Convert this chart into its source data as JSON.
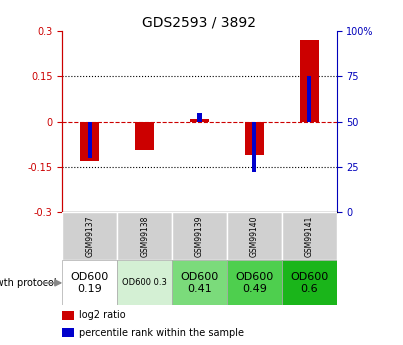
{
  "title": "GDS2593 / 3892",
  "samples": [
    "GSM99137",
    "GSM99138",
    "GSM99139",
    "GSM99140",
    "GSM99141"
  ],
  "log2_ratio": [
    -0.13,
    -0.095,
    0.008,
    -0.11,
    0.27
  ],
  "percentile_rank": [
    30,
    50,
    55,
    22,
    75
  ],
  "growth_protocol_labels": [
    "OD600\n0.19",
    "OD600 0.3",
    "OD600\n0.41",
    "OD600\n0.49",
    "OD600\n0.6"
  ],
  "growth_protocol_colors": [
    "#ffffff",
    "#d4f0d4",
    "#7bdb7b",
    "#4ecf4e",
    "#1ab51a"
  ],
  "growth_protocol_text_sizes": [
    8,
    6,
    8,
    8,
    8
  ],
  "bar_color_red": "#cc0000",
  "bar_color_blue": "#0000cc",
  "left_axis_color": "#cc0000",
  "right_axis_color": "#0000bb",
  "ylim": [
    -0.3,
    0.3
  ],
  "yticks_left": [
    -0.3,
    -0.15,
    0.0,
    0.15,
    0.3
  ],
  "ytick_labels_left": [
    "-0.3",
    "-0.15",
    "0",
    "0.15",
    "0.3"
  ],
  "ytick_labels_right": [
    "0",
    "25",
    "50",
    "75",
    "100%"
  ],
  "ytick_positions_right": [
    0,
    25,
    50,
    75,
    100
  ],
  "dotted_lines": [
    0.15,
    -0.15
  ],
  "bg_color_plot": "#ffffff",
  "bg_color_sample": "#d0d0d0",
  "legend_items": [
    "log2 ratio",
    "percentile rank within the sample"
  ],
  "legend_colors": [
    "#cc0000",
    "#0000cc"
  ],
  "red_bar_width": 0.35,
  "blue_bar_width": 0.08
}
